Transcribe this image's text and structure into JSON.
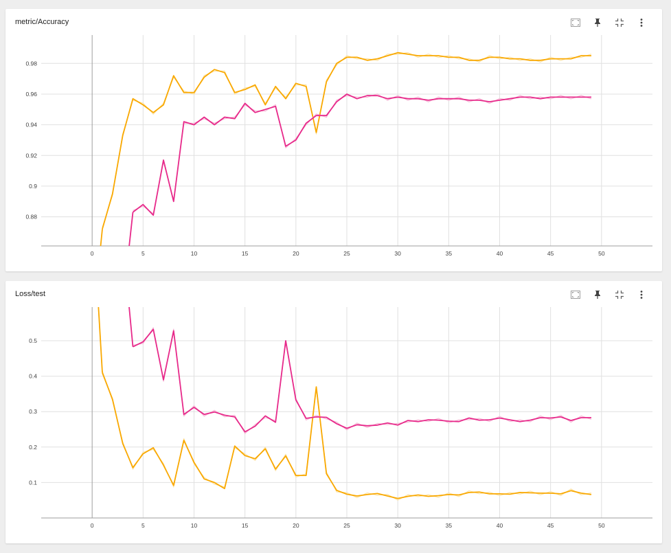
{
  "cards": [
    {
      "title": "metric/Accuracy",
      "toolbar": [
        {
          "icon": "fullscreen-icon"
        },
        {
          "icon": "pin-icon"
        },
        {
          "icon": "fit-domain-icon"
        },
        {
          "icon": "more-vert-icon"
        }
      ]
    },
    {
      "title": "Loss/test",
      "toolbar": [
        {
          "icon": "fullscreen-icon"
        },
        {
          "icon": "pin-icon"
        },
        {
          "icon": "fit-domain-icon"
        },
        {
          "icon": "more-vert-icon"
        }
      ]
    }
  ],
  "colors": {
    "orange": "#f9a800",
    "orange_raw": "#fce3a6",
    "pink": "#e7298a",
    "pink_raw": "#f6b8d6",
    "grid": "#e0e0e0",
    "axis": "#9e9e9e"
  },
  "chart_data": [
    {
      "type": "line",
      "title": "metric/Accuracy",
      "xlim": [
        -5,
        55
      ],
      "ylim": [
        0.861,
        0.9985
      ],
      "x_ticks": [
        0,
        5,
        10,
        15,
        20,
        25,
        30,
        35,
        40,
        45,
        50
      ],
      "y_ticks": [
        0.88,
        0.9,
        0.92,
        0.94,
        0.96,
        0.98
      ],
      "y_tick_labels": [
        "0.88",
        "0.9",
        "0.92",
        "0.94",
        "0.96",
        "0.98"
      ],
      "series": [
        {
          "color": "orange",
          "x": [
            1,
            2,
            3,
            4,
            5,
            6,
            7,
            8,
            9,
            10,
            11,
            12,
            13,
            14,
            15,
            16,
            17,
            18,
            19,
            20,
            21,
            22,
            23,
            24,
            25,
            26,
            27,
            28,
            29,
            30,
            31,
            32,
            33,
            34,
            35,
            36,
            37,
            38,
            39,
            40,
            41,
            42,
            43,
            44,
            45,
            46,
            47,
            48,
            49
          ],
          "values": [
            0.872,
            0.895,
            0.933,
            0.957,
            0.953,
            0.948,
            0.953,
            0.972,
            0.961,
            0.961,
            0.971,
            0.976,
            0.974,
            0.961,
            0.963,
            0.966,
            0.953,
            0.965,
            0.957,
            0.967,
            0.965,
            0.935,
            0.968,
            0.98,
            0.984,
            0.984,
            0.982,
            0.983,
            0.985,
            0.987,
            0.986,
            0.985,
            0.985,
            0.985,
            0.984,
            0.984,
            0.982,
            0.982,
            0.984,
            0.984,
            0.983,
            0.983,
            0.982,
            0.982,
            0.983,
            0.983,
            0.983,
            0.985,
            0.985
          ]
        },
        {
          "color": "pink",
          "x": [
            4,
            5,
            6,
            7,
            8,
            9,
            10,
            11,
            12,
            13,
            14,
            15,
            16,
            17,
            18,
            19,
            20,
            21,
            22,
            23,
            24,
            25,
            26,
            27,
            28,
            29,
            30,
            31,
            32,
            33,
            34,
            35,
            36,
            37,
            38,
            39,
            40,
            41,
            42,
            43,
            44,
            45,
            46,
            47,
            48,
            49
          ],
          "values": [
            0.883,
            0.888,
            0.881,
            0.917,
            0.89,
            0.942,
            0.94,
            0.945,
            0.94,
            0.945,
            0.944,
            0.954,
            0.948,
            0.95,
            0.952,
            0.926,
            0.93,
            0.941,
            0.946,
            0.946,
            0.955,
            0.96,
            0.957,
            0.959,
            0.959,
            0.957,
            0.958,
            0.957,
            0.957,
            0.956,
            0.957,
            0.957,
            0.957,
            0.956,
            0.956,
            0.955,
            0.956,
            0.957,
            0.958,
            0.958,
            0.957,
            0.958,
            0.958,
            0.958,
            0.958,
            0.958
          ]
        }
      ]
    },
    {
      "type": "line",
      "title": "Loss/test",
      "xlim": [
        -5,
        55
      ],
      "ylim": [
        0.0,
        0.595
      ],
      "x_ticks": [
        0,
        5,
        10,
        15,
        20,
        25,
        30,
        35,
        40,
        45,
        50
      ],
      "y_ticks": [
        0.1,
        0.2,
        0.3,
        0.4,
        0.5
      ],
      "y_tick_labels": [
        "0.1",
        "0.2",
        "0.3",
        "0.4",
        "0.5"
      ],
      "series": [
        {
          "color": "orange",
          "x": [
            1,
            2,
            3,
            4,
            5,
            6,
            7,
            8,
            9,
            10,
            11,
            12,
            13,
            14,
            15,
            16,
            17,
            18,
            19,
            20,
            21,
            22,
            23,
            24,
            25,
            26,
            27,
            28,
            29,
            30,
            31,
            32,
            33,
            34,
            35,
            36,
            37,
            38,
            39,
            40,
            41,
            42,
            43,
            44,
            45,
            46,
            47,
            48,
            49
          ],
          "values": [
            0.41,
            0.335,
            0.21,
            0.142,
            0.181,
            0.198,
            0.149,
            0.092,
            0.219,
            0.157,
            0.11,
            0.1,
            0.083,
            0.203,
            0.176,
            0.167,
            0.195,
            0.138,
            0.175,
            0.12,
            0.12,
            0.37,
            0.125,
            0.078,
            0.067,
            0.062,
            0.066,
            0.069,
            0.062,
            0.055,
            0.061,
            0.065,
            0.061,
            0.063,
            0.066,
            0.065,
            0.072,
            0.073,
            0.068,
            0.068,
            0.067,
            0.072,
            0.071,
            0.07,
            0.07,
            0.068,
            0.077,
            0.07,
            0.066
          ]
        },
        {
          "color": "pink",
          "x": [
            4,
            5,
            6,
            7,
            8,
            9,
            10,
            11,
            12,
            13,
            14,
            15,
            16,
            17,
            18,
            19,
            20,
            21,
            22,
            23,
            24,
            25,
            26,
            27,
            28,
            29,
            30,
            31,
            32,
            33,
            34,
            35,
            36,
            37,
            38,
            39,
            40,
            41,
            42,
            43,
            44,
            45,
            46,
            47,
            48,
            49
          ],
          "values": [
            0.483,
            0.497,
            0.532,
            0.39,
            0.528,
            0.292,
            0.312,
            0.292,
            0.299,
            0.29,
            0.285,
            0.243,
            0.259,
            0.288,
            0.27,
            0.5,
            0.333,
            0.281,
            0.285,
            0.284,
            0.266,
            0.253,
            0.263,
            0.26,
            0.262,
            0.268,
            0.262,
            0.275,
            0.272,
            0.277,
            0.276,
            0.273,
            0.272,
            0.282,
            0.276,
            0.277,
            0.282,
            0.277,
            0.272,
            0.276,
            0.283,
            0.282,
            0.285,
            0.275,
            0.283,
            0.283
          ]
        }
      ]
    }
  ]
}
